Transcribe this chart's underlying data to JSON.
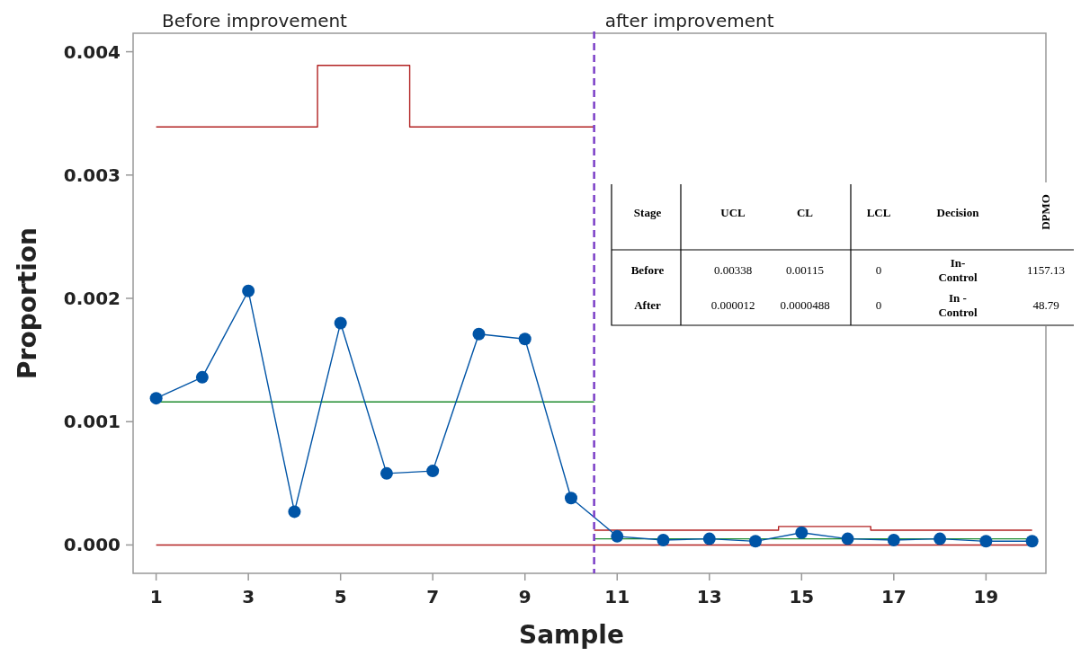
{
  "chart_data": {
    "type": "line",
    "xlabel": "Sample",
    "ylabel": "Proportion",
    "xlim": [
      0.5,
      20.3
    ],
    "ylim": [
      -0.00023,
      0.00415
    ],
    "xticks": [
      1,
      3,
      5,
      7,
      9,
      11,
      13,
      15,
      17,
      19
    ],
    "yticks": [
      {
        "value": 0,
        "label": "0.000"
      },
      {
        "value": 0.001,
        "label": "0.001"
      },
      {
        "value": 0.002,
        "label": "0.002"
      },
      {
        "value": 0.003,
        "label": "0.003"
      },
      {
        "value": 0.004,
        "label": "0.004"
      }
    ],
    "grid": false,
    "marker": "circle",
    "line_style": "solid",
    "x": [
      1,
      2,
      3,
      4,
      5,
      6,
      7,
      8,
      9,
      10,
      11,
      12,
      13,
      14,
      15,
      16,
      17,
      18,
      19,
      20
    ],
    "series": [
      {
        "type": "step",
        "color": "#b22222",
        "marker": "none",
        "x": [
          1,
          4.5,
          6.5,
          10.5
        ],
        "values": [
          0.00339,
          0.00389,
          0.00339,
          0.00339
        ]
      },
      {
        "type": "step",
        "color": "#b22222",
        "marker": "none",
        "x": [
          10.5,
          14.5,
          16.5,
          20
        ],
        "values": [
          0.00012,
          0.00015,
          0.00012,
          0.00012
        ]
      },
      {
        "color": "#b22222",
        "marker": "none",
        "x": [
          1,
          20
        ],
        "values": [
          0,
          0
        ]
      },
      {
        "color": "#1e8c2e",
        "marker": "none",
        "x": [
          1,
          10.5
        ],
        "values": [
          0.00116,
          0.00116
        ]
      },
      {
        "color": "#1e8c2e",
        "marker": "none",
        "x": [
          10.5,
          20
        ],
        "values": [
          5e-05,
          5e-05
        ]
      },
      {
        "color": "#0054a6",
        "values": [
          0.00119,
          0.00136,
          0.00206,
          0.00027,
          0.0018,
          0.00058,
          0.0006,
          0.00171,
          0.00167,
          0.00038,
          7e-05,
          4e-05,
          5e-05,
          3e-05,
          0.0001,
          5e-05,
          4e-05,
          5e-05,
          3e-05,
          3e-05
        ]
      }
    ],
    "ref_lines": [
      {
        "axis": "x",
        "value": 10.5,
        "color": "#7b3fc8",
        "line_style": "dashed"
      }
    ],
    "annotations": [
      "Before improvement",
      "after improvement",
      "Stage",
      "UCL",
      "CL",
      "LCL",
      "Decision",
      "DPMO",
      "Before",
      "0.00338",
      "0.00115",
      "0",
      "In-\nControl",
      "1157.13",
      "After",
      "0.000012",
      "0.0000488",
      "0",
      "In -\nControl",
      "48.79"
    ]
  }
}
